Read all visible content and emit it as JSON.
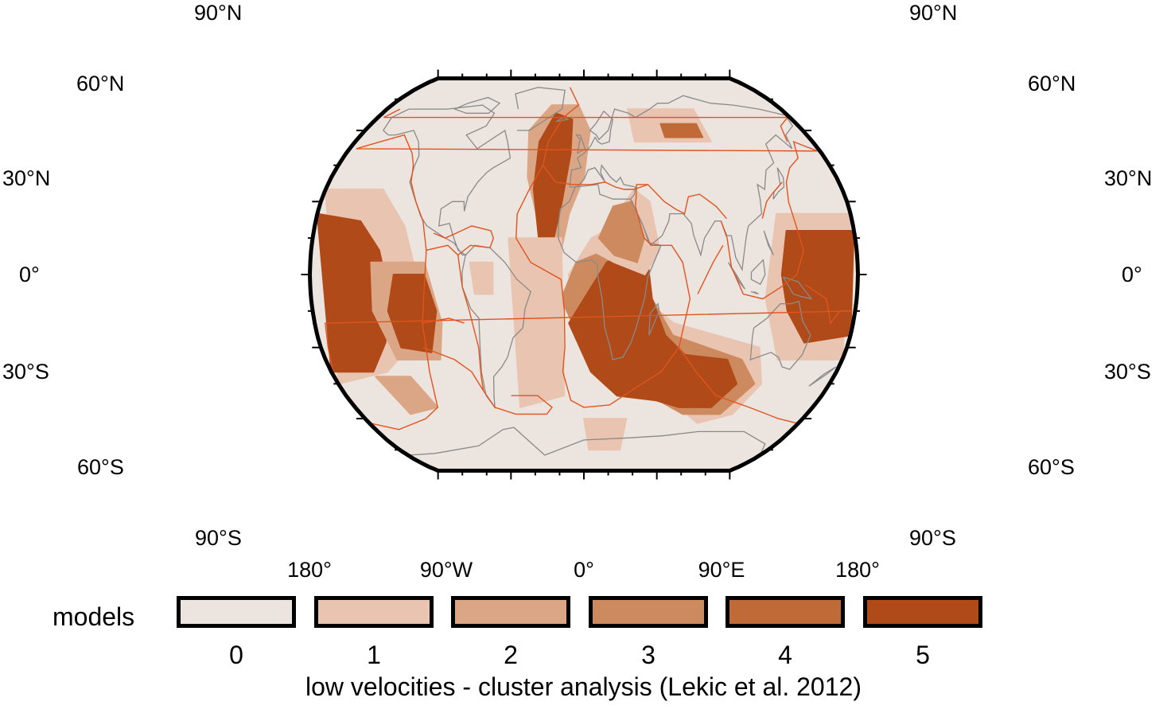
{
  "map": {
    "projection": "robinson",
    "lat_labels": [
      "90°N",
      "60°N",
      "30°N",
      "0°",
      "30°S",
      "60°S",
      "90°S"
    ],
    "lon_labels": [
      "180°",
      "90°W",
      "0°",
      "90°E",
      "180°"
    ],
    "background_color": "#ece4df",
    "coast_color": "#8a8a8a",
    "plate_boundary_color": "#e0541e"
  },
  "legend": {
    "title": "models",
    "classes": [
      {
        "label": "0",
        "color": "#ece4df"
      },
      {
        "label": "1",
        "color": "#e9c5b1"
      },
      {
        "label": "2",
        "color": "#dba685"
      },
      {
        "label": "3",
        "color": "#ce8a5f"
      },
      {
        "label": "4",
        "color": "#c06a38"
      },
      {
        "label": "5",
        "color": "#b04a18"
      }
    ]
  },
  "caption": "low velocities - cluster analysis (Lekic et al. 2012)"
}
